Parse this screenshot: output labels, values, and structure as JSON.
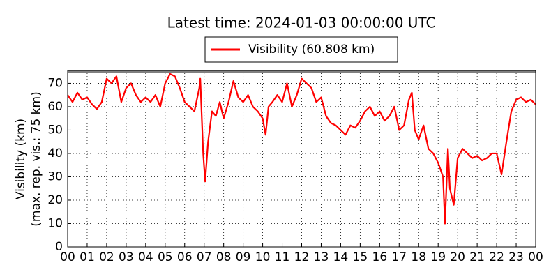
{
  "chart_data": {
    "type": "line",
    "title": "Latest time: 2024-01-03 00:00:00 UTC",
    "ylabel": [
      "Visibility (km)",
      "(max. rep. vis.: 75 km)"
    ],
    "reference_line": {
      "value": 75,
      "color": "#808080"
    },
    "x": [
      0,
      0.25,
      0.5,
      0.75,
      1,
      1.25,
      1.5,
      1.75,
      2,
      2.25,
      2.5,
      2.75,
      3,
      3.25,
      3.5,
      3.75,
      4,
      4.25,
      4.5,
      4.75,
      5,
      5.25,
      5.5,
      5.75,
      6,
      6.25,
      6.5,
      6.75,
      6.8,
      6.95,
      7.05,
      7.2,
      7.4,
      7.6,
      7.8,
      8,
      8.25,
      8.5,
      8.75,
      9,
      9.25,
      9.5,
      9.75,
      10,
      10.15,
      10.3,
      10.5,
      10.75,
      11,
      11.25,
      11.5,
      11.75,
      12,
      12.25,
      12.5,
      12.75,
      13,
      13.25,
      13.5,
      13.75,
      14,
      14.25,
      14.5,
      14.75,
      15,
      15.25,
      15.5,
      15.75,
      16,
      16.25,
      16.5,
      16.75,
      17,
      17.25,
      17.5,
      17.65,
      17.8,
      18,
      18.25,
      18.5,
      18.75,
      19,
      19.25,
      19.35,
      19.5,
      19.6,
      19.8,
      20,
      20.25,
      20.5,
      20.75,
      21,
      21.25,
      21.5,
      21.75,
      22,
      22.25,
      22.5,
      22.75,
      23,
      23.25,
      23.5,
      23.75,
      24
    ],
    "series": [
      {
        "name": "Visibility (60.808 km)",
        "color": "#ff0000",
        "values": [
          65,
          62,
          66,
          63,
          64,
          61,
          59,
          62,
          72,
          70,
          73,
          62,
          68,
          70,
          65,
          62,
          64,
          62,
          65,
          60,
          70,
          74,
          73,
          68,
          62,
          60,
          58,
          68,
          72,
          40,
          28,
          45,
          58,
          56,
          62,
          55,
          62,
          71,
          64,
          62,
          65,
          60,
          58,
          55,
          48,
          60,
          62,
          65,
          62,
          70,
          60,
          65,
          72,
          70,
          68,
          62,
          64,
          56,
          53,
          52,
          50,
          48,
          52,
          51,
          54,
          58,
          60,
          56,
          58,
          54,
          56,
          60,
          50,
          52,
          63,
          66,
          50,
          46,
          52,
          42,
          40,
          36,
          30,
          10,
          42,
          25,
          18,
          38,
          42,
          40,
          38,
          39,
          37,
          38,
          40,
          40,
          31,
          45,
          58,
          63,
          64,
          62,
          63,
          61
        ]
      }
    ],
    "xlim": [
      0,
      24
    ],
    "xticks": [
      {
        "value": 0,
        "label": "00"
      },
      {
        "value": 1,
        "label": "01"
      },
      {
        "value": 2,
        "label": "02"
      },
      {
        "value": 3,
        "label": "03"
      },
      {
        "value": 4,
        "label": "04"
      },
      {
        "value": 5,
        "label": "05"
      },
      {
        "value": 6,
        "label": "06"
      },
      {
        "value": 7,
        "label": "07"
      },
      {
        "value": 8,
        "label": "08"
      },
      {
        "value": 9,
        "label": "09"
      },
      {
        "value": 10,
        "label": "10"
      },
      {
        "value": 11,
        "label": "11"
      },
      {
        "value": 12,
        "label": "12"
      },
      {
        "value": 13,
        "label": "13"
      },
      {
        "value": 14,
        "label": "14"
      },
      {
        "value": 15,
        "label": "15"
      },
      {
        "value": 16,
        "label": "16"
      },
      {
        "value": 17,
        "label": "17"
      },
      {
        "value": 18,
        "label": "18"
      },
      {
        "value": 19,
        "label": "19"
      },
      {
        "value": 20,
        "label": "20"
      },
      {
        "value": 21,
        "label": "21"
      },
      {
        "value": 22,
        "label": "22"
      },
      {
        "value": 23,
        "label": "23"
      },
      {
        "value": 24,
        "label": "00"
      }
    ],
    "ylim": [
      0,
      75.5
    ],
    "yticks": [
      0,
      10,
      20,
      30,
      40,
      50,
      60,
      70
    ],
    "grid": true
  }
}
